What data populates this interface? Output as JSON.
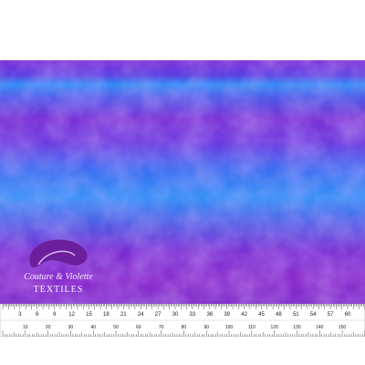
{
  "logo": {
    "script": "Couture & Violette",
    "brand": "TEXTILES"
  },
  "ruler": {
    "inches": [
      3,
      6,
      9,
      12,
      15,
      18,
      21,
      24,
      27,
      30,
      33,
      36,
      39,
      42,
      45,
      48,
      51,
      54,
      57,
      60
    ],
    "centimeters": [
      10,
      20,
      30,
      40,
      50,
      60,
      70,
      80,
      90,
      100,
      110,
      120,
      130,
      140,
      150
    ]
  }
}
